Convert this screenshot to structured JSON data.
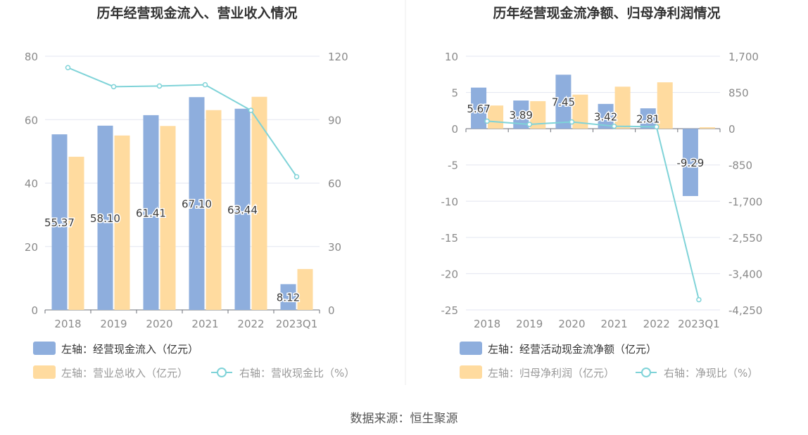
{
  "source": "数据来源：恒生聚源",
  "colors": {
    "blue": "#8eaedd",
    "yellow": "#ffdb9f",
    "cyan": "#7fd3d8",
    "grid": "#e3e6f0",
    "axis": "#8a8a8a",
    "label": "#3b3b3b",
    "title": "#333333"
  },
  "chart_data": [
    {
      "type": "bar",
      "title": "历年经营现金流入、营业收入情况",
      "categories": [
        "2018",
        "2019",
        "2020",
        "2021",
        "2022",
        "2023Q1"
      ],
      "left_axis": {
        "ticks": [
          "0",
          "20",
          "40",
          "60",
          "80"
        ],
        "ylim": [
          0,
          80
        ]
      },
      "right_axis": {
        "ticks": [
          "0",
          "30",
          "60",
          "90",
          "120"
        ],
        "ylim": [
          0,
          120
        ]
      },
      "series": [
        {
          "name": "左轴：经营现金流入（亿元）",
          "kind": "bar",
          "axis": "left",
          "color": "#8eaedd",
          "values": [
            55.37,
            58.1,
            61.41,
            67.1,
            63.44,
            8.12
          ],
          "labels": [
            "55.37",
            "58.10",
            "61.41",
            "67.10",
            "63.44",
            "8.12"
          ]
        },
        {
          "name": "左轴：营业总收入（亿元）",
          "kind": "bar",
          "axis": "left",
          "color": "#ffdb9f",
          "values": [
            48.3,
            55.0,
            58.0,
            63.0,
            67.2,
            12.9
          ]
        },
        {
          "name": "右轴：营收现金比（%）",
          "kind": "line",
          "axis": "right",
          "color": "#7fd3d8",
          "values": [
            114.6,
            105.6,
            105.9,
            106.5,
            94.4,
            63.0
          ]
        }
      ],
      "legend": [
        "左轴：经营现金流入（亿元）",
        "左轴：营业总收入（亿元）",
        "右轴：营收现金比（%）"
      ],
      "grid": true,
      "legend_position": "bottom-left"
    },
    {
      "type": "bar",
      "title": "历年经营现金流净额、归母净利润情况",
      "categories": [
        "2018",
        "2019",
        "2020",
        "2021",
        "2022",
        "2023Q1"
      ],
      "left_axis": {
        "ticks": [
          "10",
          "5",
          "0",
          "-5",
          "-10",
          "-15",
          "-20",
          "-25"
        ],
        "ylim": [
          -25,
          10
        ]
      },
      "right_axis": {
        "ticks": [
          "1,700",
          "850",
          "0",
          "-850",
          "-1,700",
          "-2,550",
          "-3,400",
          "-4,250"
        ],
        "ylim": [
          -4250,
          1700
        ]
      },
      "series": [
        {
          "name": "左轴：经营活动现金流净额（亿元）",
          "kind": "bar",
          "axis": "left",
          "color": "#8eaedd",
          "values": [
            5.67,
            3.89,
            7.45,
            3.42,
            2.81,
            -9.29
          ],
          "labels": [
            "5.67",
            "3.89",
            "7.45",
            "3.42",
            "2.81",
            "-9.29"
          ]
        },
        {
          "name": "左轴：归母净利润（亿元）",
          "kind": "bar",
          "axis": "left",
          "color": "#ffdb9f",
          "values": [
            3.2,
            3.8,
            4.7,
            5.8,
            6.4,
            0.2
          ]
        },
        {
          "name": "右轴：净现比（%）",
          "kind": "line",
          "axis": "right",
          "color": "#7fd3d8",
          "values": [
            177,
            102,
            158,
            59,
            44,
            -4010
          ]
        }
      ],
      "legend": [
        "左轴：经营活动现金流净额（亿元）",
        "左轴：归母净利润（亿元）",
        "右轴：净现比（%）"
      ],
      "grid": true,
      "legend_position": "bottom-left"
    }
  ]
}
